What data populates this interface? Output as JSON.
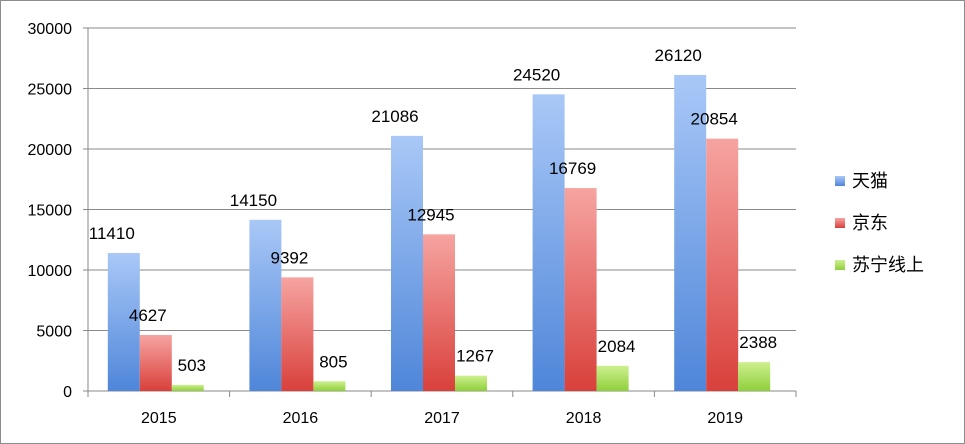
{
  "chart_data": {
    "type": "bar",
    "categories": [
      "2015",
      "2016",
      "2017",
      "2018",
      "2019"
    ],
    "series": [
      {
        "name": "天猫",
        "values": [
          11410,
          14150,
          21086,
          24520,
          26120
        ],
        "color": "#4f86d9",
        "color_light": "#a9c8f7"
      },
      {
        "name": "京东",
        "values": [
          4627,
          9392,
          12945,
          16769,
          20854
        ],
        "color": "#d9403b",
        "color_light": "#f6a4a1"
      },
      {
        "name": "苏宁线上",
        "values": [
          503,
          805,
          1267,
          2084,
          2388
        ],
        "color": "#8fcf3a",
        "color_light": "#cdf08f"
      }
    ],
    "yticks": [
      "0",
      "5000",
      "10000",
      "15000",
      "20000",
      "25000",
      "30000"
    ],
    "ylim": [
      0,
      30000
    ],
    "grid": true,
    "legend_position": "right",
    "title": "",
    "xlabel": "",
    "ylabel": ""
  }
}
